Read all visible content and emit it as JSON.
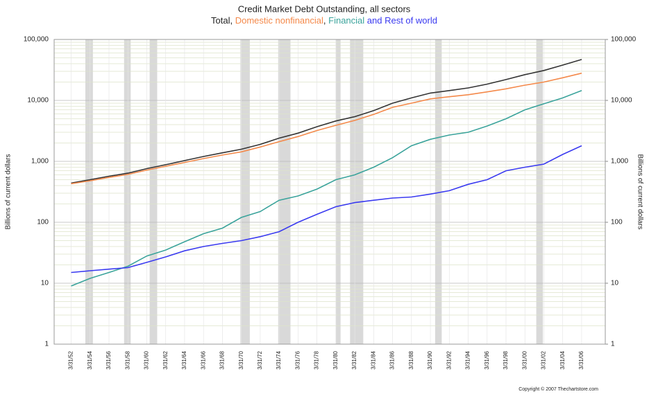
{
  "chart_data": {
    "type": "line",
    "title": "Credit Market Debt Outstanding, all sectors",
    "legend_separators": [
      ", ",
      ", ",
      " and "
    ],
    "ylabel": "Billions of current dollars",
    "y2label": "Billions of current dollars",
    "footnote": "Copyright © 2007 Thechartstore.com",
    "log_scale": true,
    "grid": true,
    "minor_grid": true,
    "xlim": [
      1950.2,
      2008.5
    ],
    "xticks": [
      {
        "value": 1952,
        "label": "3/31/52"
      },
      {
        "value": 1954,
        "label": "3/31/54"
      },
      {
        "value": 1956,
        "label": "3/31/56"
      },
      {
        "value": 1958,
        "label": "3/31/58"
      },
      {
        "value": 1960,
        "label": "3/31/60"
      },
      {
        "value": 1962,
        "label": "3/31/62"
      },
      {
        "value": 1964,
        "label": "3/31/64"
      },
      {
        "value": 1966,
        "label": "3/31/66"
      },
      {
        "value": 1968,
        "label": "3/31/68"
      },
      {
        "value": 1970,
        "label": "3/31/70"
      },
      {
        "value": 1972,
        "label": "3/31/72"
      },
      {
        "value": 1974,
        "label": "3/31/74"
      },
      {
        "value": 1976,
        "label": "3/31/76"
      },
      {
        "value": 1978,
        "label": "3/31/78"
      },
      {
        "value": 1980,
        "label": "3/31/80"
      },
      {
        "value": 1982,
        "label": "3/31/82"
      },
      {
        "value": 1984,
        "label": "3/31/84"
      },
      {
        "value": 1986,
        "label": "3/31/86"
      },
      {
        "value": 1988,
        "label": "3/31/88"
      },
      {
        "value": 1990,
        "label": "3/31/90"
      },
      {
        "value": 1992,
        "label": "3/31/92"
      },
      {
        "value": 1994,
        "label": "3/31/94"
      },
      {
        "value": 1996,
        "label": "3/31/96"
      },
      {
        "value": 1998,
        "label": "3/31/98"
      },
      {
        "value": 2000,
        "label": "3/31/00"
      },
      {
        "value": 2002,
        "label": "3/31/02"
      },
      {
        "value": 2004,
        "label": "3/31/04"
      },
      {
        "value": 2006,
        "label": "3/31/06"
      }
    ],
    "ylim": [
      1,
      100000
    ],
    "yticks": [
      1,
      10,
      100,
      {
        "value": 1000,
        "label": "1,000"
      },
      {
        "value": 10000,
        "label": "10,000"
      },
      {
        "value": 100000,
        "label": "100,000"
      }
    ],
    "y2ticks": [
      1,
      10,
      100,
      {
        "value": 1000,
        "label": "1,000"
      },
      {
        "value": 10000,
        "label": "10,000"
      },
      {
        "value": 100000,
        "label": "100,000"
      }
    ],
    "recession_color": "#d9d9d9",
    "recessions": [
      [
        1953.5,
        1954.3
      ],
      [
        1957.6,
        1958.3
      ],
      [
        1960.3,
        1961.1
      ],
      [
        1969.9,
        1970.9
      ],
      [
        1973.9,
        1975.2
      ],
      [
        1980.0,
        1980.5
      ],
      [
        1981.5,
        1982.9
      ],
      [
        1990.5,
        1991.2
      ],
      [
        2001.2,
        2001.9
      ]
    ],
    "x": [
      1952,
      1954,
      1956,
      1958,
      1960,
      1962,
      1964,
      1966,
      1968,
      1970,
      1972,
      1974,
      1976,
      1978,
      1980,
      1982,
      1984,
      1986,
      1988,
      1990,
      1992,
      1994,
      1996,
      1998,
      2000,
      2002,
      2004,
      2006
    ],
    "series": [
      {
        "name": "Total",
        "color": "#333333",
        "values": [
          440,
          500,
          570,
          640,
          760,
          880,
          1030,
          1200,
          1380,
          1580,
          1900,
          2400,
          2900,
          3700,
          4600,
          5400,
          6800,
          9000,
          11000,
          13200,
          14500,
          16000,
          18500,
          22000,
          26500,
          31000,
          38000,
          47000
        ]
      },
      {
        "name": "Domestic nonfinancial",
        "color": "#f4894a",
        "values": [
          430,
          480,
          545,
          610,
          720,
          830,
          960,
          1110,
          1270,
          1430,
          1720,
          2100,
          2550,
          3200,
          3900,
          4700,
          5900,
          7700,
          9000,
          10600,
          11500,
          12400,
          13800,
          15500,
          17800,
          20000,
          23500,
          28000
        ]
      },
      {
        "name": "Financial",
        "color": "#3aa39b",
        "values": [
          9,
          12,
          15,
          19,
          28,
          35,
          48,
          65,
          80,
          120,
          150,
          230,
          270,
          350,
          500,
          600,
          800,
          1150,
          1800,
          2300,
          2700,
          3000,
          3800,
          5000,
          7000,
          8800,
          11000,
          14500
        ]
      },
      {
        "name": "Rest of world",
        "color": "#3a3af0",
        "values": [
          15,
          16,
          17,
          18,
          22,
          27,
          34,
          40,
          45,
          50,
          58,
          70,
          100,
          135,
          180,
          210,
          230,
          250,
          260,
          290,
          330,
          420,
          500,
          700,
          800,
          900,
          1300,
          1800
        ]
      }
    ]
  }
}
